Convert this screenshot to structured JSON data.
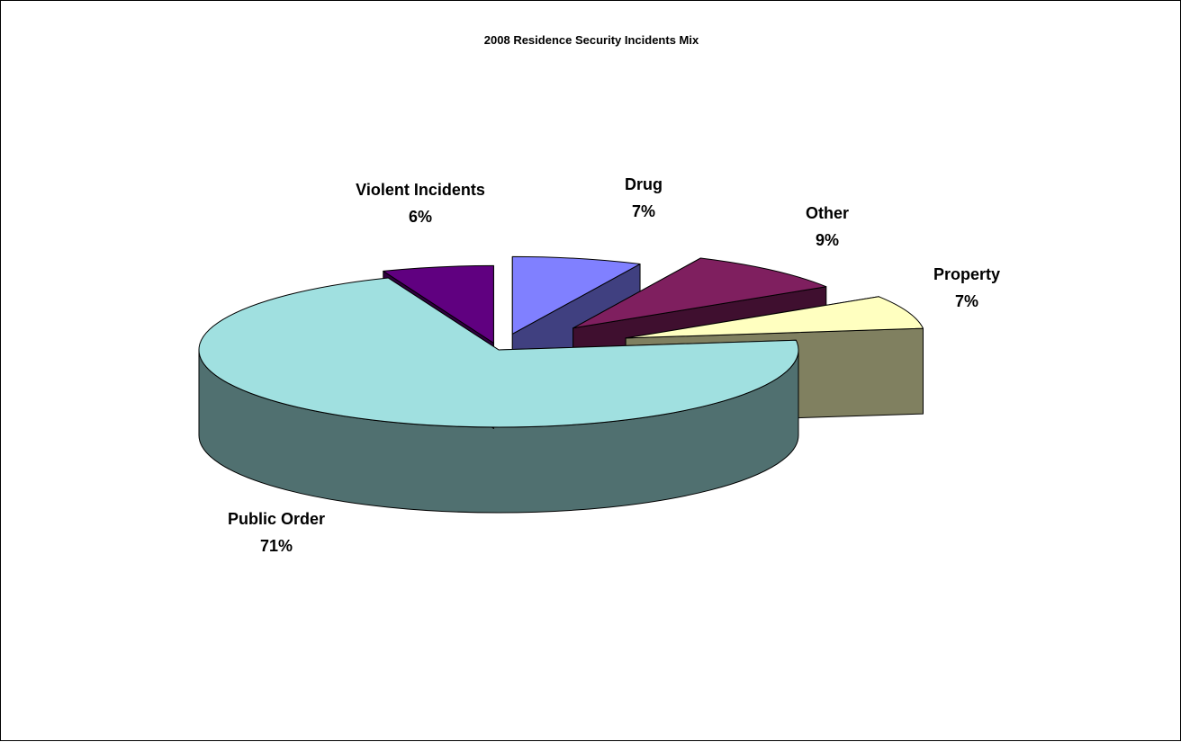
{
  "chart_data": {
    "type": "pie",
    "title": "2008 Residence Security Incidents Mix",
    "series": [
      {
        "values": [
          {
            "label": "Drug",
            "value": 7,
            "pct_label": "7%",
            "top_color": "#8080ff",
            "side_color": "#404080"
          },
          {
            "label": "Other",
            "value": 9,
            "pct_label": "9%",
            "top_color": "#7f1f5f",
            "side_color": "#3f0f2f"
          },
          {
            "label": "Property",
            "value": 7,
            "pct_label": "7%",
            "top_color": "#ffffc0",
            "side_color": "#808060"
          },
          {
            "label": "Public Order",
            "value": 71,
            "pct_label": "71%",
            "top_color": "#a0e0e0",
            "side_color": "#507070"
          },
          {
            "label": "Violent Incidents",
            "value": 6,
            "pct_label": "6%",
            "top_color": "#600080",
            "side_color": "#300040"
          }
        ]
      }
    ],
    "style": "3d-exploded",
    "legend": "none",
    "data_labels": "category-and-percent"
  }
}
